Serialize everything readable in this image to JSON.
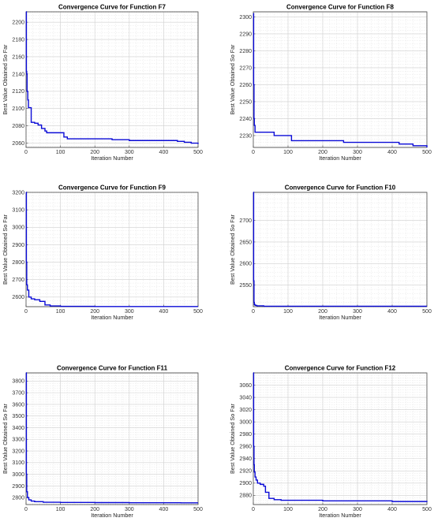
{
  "chart_data": [
    {
      "type": "line",
      "title": "Convergence Curve for Function F7",
      "xlabel": "Iteration Number",
      "ylabel": "Best Value Obtained So Far",
      "xlim": [
        0,
        500
      ],
      "ylim": [
        2055,
        2212
      ],
      "xticks": [
        0,
        100,
        200,
        300,
        400,
        500
      ],
      "yticks": [
        2060,
        2080,
        2100,
        2120,
        2140,
        2160,
        2180,
        2200
      ],
      "grid": true,
      "x": [
        0,
        1,
        2,
        3,
        5,
        7,
        10,
        15,
        25,
        35,
        45,
        55,
        60,
        70,
        90,
        110,
        120,
        130,
        150,
        250,
        300,
        350,
        400,
        440,
        460,
        480,
        500
      ],
      "y": [
        2212,
        2143,
        2140,
        2120,
        2110,
        2101,
        2101,
        2084,
        2083,
        2081,
        2077,
        2074,
        2072,
        2072,
        2072,
        2067,
        2065,
        2065,
        2065,
        2064,
        2063,
        2063,
        2063,
        2062,
        2061,
        2060,
        2059
      ]
    },
    {
      "type": "line",
      "title": "Convergence Curve for Function F8",
      "xlabel": "Iteration Number",
      "ylabel": "Best Value Obtained So Far",
      "xlim": [
        0,
        500
      ],
      "ylim": [
        2223,
        2303
      ],
      "xticks": [
        0,
        100,
        200,
        300,
        400,
        500
      ],
      "yticks": [
        2230,
        2240,
        2250,
        2260,
        2270,
        2280,
        2290,
        2300
      ],
      "grid": true,
      "x": [
        0,
        1,
        2,
        3,
        5,
        10,
        40,
        60,
        110,
        200,
        260,
        400,
        420,
        440,
        460,
        480,
        500
      ],
      "y": [
        2302,
        2260,
        2240,
        2236,
        2232,
        2232,
        2232,
        2230,
        2227,
        2227,
        2226,
        2226,
        2225,
        2225,
        2224,
        2224,
        2223
      ]
    },
    {
      "type": "line",
      "title": "Convergence Curve for Function F9",
      "xlabel": "Iteration Number",
      "ylabel": "Best Value Obtained So Far",
      "xlim": [
        0,
        500
      ],
      "ylim": [
        2545,
        3200
      ],
      "xticks": [
        0,
        100,
        200,
        300,
        400,
        500
      ],
      "yticks": [
        2600,
        2700,
        2800,
        2900,
        3000,
        3100,
        3200
      ],
      "grid": true,
      "x": [
        0,
        1,
        2,
        4,
        8,
        15,
        25,
        40,
        55,
        70,
        100,
        200,
        300,
        400,
        500
      ],
      "y": [
        3200,
        2800,
        2670,
        2640,
        2600,
        2590,
        2585,
        2575,
        2555,
        2549,
        2547,
        2546,
        2546,
        2546,
        2546
      ]
    },
    {
      "type": "line",
      "title": "Convergence Curve for Function F10",
      "xlabel": "Iteration Number",
      "ylabel": "Best Value Obtained So Far",
      "xlim": [
        0,
        500
      ],
      "ylim": [
        2500,
        2765
      ],
      "xticks": [
        0,
        100,
        200,
        300,
        400,
        500
      ],
      "yticks": [
        2550,
        2600,
        2650,
        2700
      ],
      "grid": true,
      "x": [
        0,
        1,
        2,
        3,
        5,
        10,
        30,
        100,
        200,
        300,
        400,
        500
      ],
      "y": [
        2765,
        2560,
        2510,
        2505,
        2503,
        2502,
        2501,
        2501,
        2501,
        2501,
        2501,
        2501
      ]
    },
    {
      "type": "line",
      "title": "Convergence Curve for Function F11",
      "xlabel": "Iteration Number",
      "ylabel": "Best Value Obtained So Far",
      "xlim": [
        0,
        500
      ],
      "ylim": [
        2740,
        3870
      ],
      "xticks": [
        0,
        100,
        200,
        300,
        400,
        500
      ],
      "yticks": [
        2800,
        2900,
        3000,
        3100,
        3200,
        3300,
        3400,
        3500,
        3600,
        3700,
        3800
      ],
      "grid": true,
      "x": [
        0,
        1,
        2,
        4,
        8,
        15,
        25,
        50,
        100,
        200,
        300,
        400,
        450,
        500
      ],
      "y": [
        3870,
        3000,
        2850,
        2800,
        2780,
        2770,
        2765,
        2760,
        2758,
        2757,
        2756,
        2756,
        2755,
        2755
      ]
    },
    {
      "type": "line",
      "title": "Convergence Curve for Function F12",
      "xlabel": "Iteration Number",
      "ylabel": "Best Value Obtained So Far",
      "xlim": [
        0,
        500
      ],
      "ylim": [
        2865,
        3080
      ],
      "xticks": [
        0,
        100,
        200,
        300,
        400,
        500
      ],
      "yticks": [
        2880,
        2900,
        2920,
        2940,
        2960,
        2980,
        3000,
        3020,
        3040,
        3060
      ],
      "grid": true,
      "x": [
        0,
        1,
        2,
        3,
        5,
        8,
        12,
        20,
        30,
        35,
        45,
        60,
        80,
        100,
        200,
        300,
        400,
        450,
        500
      ],
      "y": [
        3080,
        2960,
        2930,
        2918,
        2910,
        2905,
        2900,
        2898,
        2895,
        2885,
        2875,
        2873,
        2872,
        2872,
        2871,
        2871,
        2870,
        2870,
        2869
      ]
    }
  ]
}
